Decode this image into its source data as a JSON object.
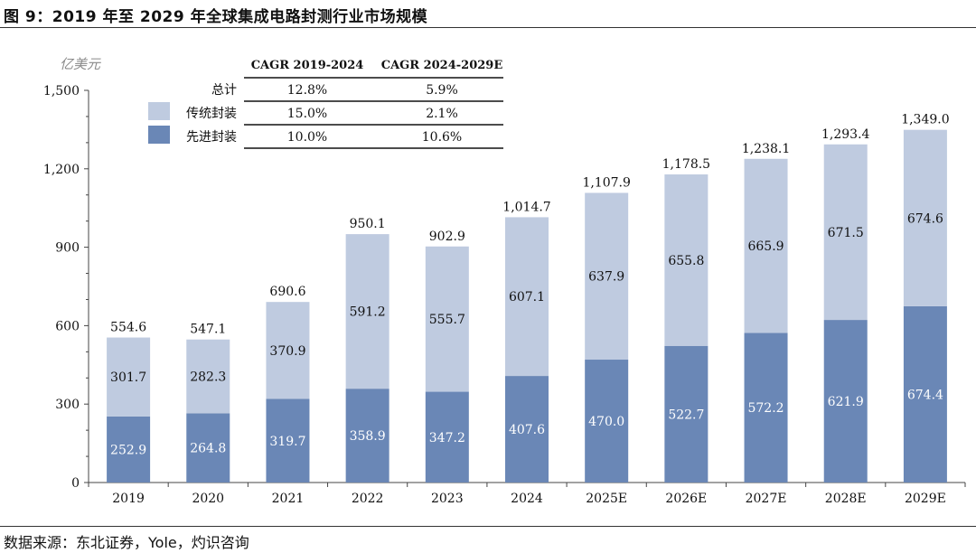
{
  "figure": {
    "title": "图 9：2019 年至 2029 年全球集成电路封测行业市场规模",
    "source": "数据来源：东北证券，Yole，灼识咨询"
  },
  "colors": {
    "traditional": "#bfcbe0",
    "advanced": "#6a87b6",
    "axis": "#444444"
  },
  "chart_data": {
    "type": "bar",
    "stacked": true,
    "unit_label": "亿美元",
    "categories": [
      "2019",
      "2020",
      "2021",
      "2022",
      "2023",
      "2024",
      "2025E",
      "2026E",
      "2027E",
      "2028E",
      "2029E"
    ],
    "series": [
      {
        "name": "先进封装",
        "values": [
          252.9,
          264.8,
          319.7,
          358.9,
          347.2,
          407.6,
          470.0,
          522.7,
          572.2,
          621.9,
          674.4
        ],
        "labels": [
          "252.9",
          "264.8",
          "319.7",
          "358.9",
          "347.2",
          "407.6",
          "470.0",
          "522.7",
          "572.2",
          "621.9",
          "674.4"
        ]
      },
      {
        "name": "传统封装",
        "values": [
          301.7,
          282.3,
          370.9,
          591.2,
          555.7,
          607.1,
          637.9,
          655.8,
          665.9,
          671.5,
          674.6
        ],
        "labels": [
          "301.7",
          "282.3",
          "370.9",
          "591.2",
          "555.7",
          "607.1",
          "637.9",
          "655.8",
          "665.9",
          "671.5",
          "674.6"
        ]
      }
    ],
    "totals": [
      554.6,
      547.1,
      690.6,
      950.1,
      902.9,
      1014.7,
      1107.9,
      1178.5,
      1238.1,
      1293.4,
      1349.0
    ],
    "total_labels": [
      "554.6",
      "547.1",
      "690.6",
      "950.1",
      "902.9",
      "1,014.7",
      "1,107.9",
      "1,178.5",
      "1,238.1",
      "1,293.4",
      "1,349.0"
    ],
    "ylim": [
      0,
      1500
    ],
    "yticks": [
      0,
      300,
      600,
      900,
      1200,
      1500
    ],
    "ytick_labels": [
      "0",
      "300",
      "600",
      "900",
      "1,200",
      "1,500"
    ],
    "legend_position": "top-left",
    "cagr_table": {
      "headers": [
        "CAGR 2019-2024",
        "CAGR 2024-2029E"
      ],
      "rows": [
        {
          "label": "总计",
          "values": [
            "12.8%",
            "5.9%"
          ],
          "swatch": "none"
        },
        {
          "label": "传统封装",
          "values": [
            "15.0%",
            "2.1%"
          ],
          "swatch": "traditional"
        },
        {
          "label": "先进封装",
          "values": [
            "10.0%",
            "10.6%"
          ],
          "swatch": "advanced"
        }
      ]
    }
  }
}
